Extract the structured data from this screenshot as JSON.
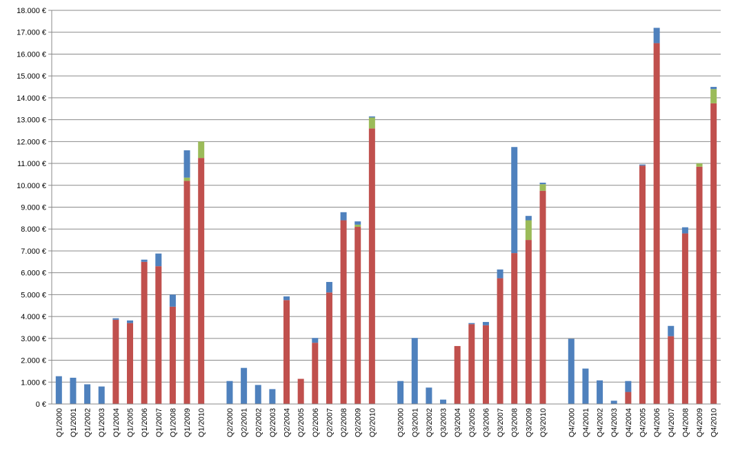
{
  "chart_data": {
    "type": "stacked-bar",
    "categories": [
      "Q1/2000",
      "Q1/2001",
      "Q1/2002",
      "Q1/2003",
      "Q1/2004",
      "Q1/2005",
      "Q1/2006",
      "Q1/2007",
      "Q1/2008",
      "Q1/2009",
      "Q1/2010",
      null,
      "Q2/2000",
      "Q2/2001",
      "Q2/2002",
      "Q2/2003",
      "Q2/2004",
      "Q2/2005",
      "Q2/2006",
      "Q2/2007",
      "Q2/2008",
      "Q2/2009",
      "Q2/2010",
      null,
      "Q3/2000",
      "Q3/2001",
      "Q3/2002",
      "Q3/2003",
      "Q3/2004",
      "Q3/2005",
      "Q3/2006",
      "Q3/2007",
      "Q3/2008",
      "Q3/2009",
      "Q3/2010",
      null,
      "Q4/2000",
      "Q4/2001",
      "Q4/2002",
      "Q4/2003",
      "Q4/2004",
      "Q4/2005",
      "Q4/2006",
      "Q4/2007",
      "Q4/2008",
      "Q4/2009",
      "Q4/2010"
    ],
    "series": [
      {
        "color": "#c0504d",
        "values": [
          0,
          0,
          0,
          0,
          3850,
          3700,
          6500,
          6300,
          4450,
          10200,
          11250,
          null,
          0,
          0,
          0,
          0,
          4750,
          1150,
          2800,
          5100,
          8400,
          8100,
          12600,
          null,
          0,
          0,
          0,
          0,
          2650,
          3650,
          3600,
          5750,
          6900,
          7500,
          9750,
          null,
          0,
          0,
          0,
          0,
          550,
          10900,
          16500,
          3100,
          7800,
          10850,
          13750
        ]
      },
      {
        "color": "#9bbb59",
        "values": [
          0,
          0,
          0,
          0,
          0,
          0,
          0,
          0,
          0,
          150,
          750,
          null,
          0,
          0,
          0,
          0,
          0,
          0,
          0,
          0,
          0,
          100,
          500,
          null,
          0,
          0,
          0,
          0,
          0,
          0,
          0,
          0,
          0,
          900,
          300,
          null,
          0,
          0,
          0,
          0,
          0,
          0,
          0,
          0,
          0,
          150,
          650
        ]
      },
      {
        "color": "#4f81bd",
        "values": [
          1270,
          1200,
          900,
          800,
          70,
          120,
          100,
          580,
          550,
          1250,
          0,
          null,
          1050,
          1650,
          870,
          680,
          170,
          0,
          220,
          480,
          370,
          150,
          50,
          null,
          1050,
          3020,
          750,
          200,
          0,
          50,
          150,
          400,
          4850,
          200,
          70,
          null,
          2980,
          1620,
          1080,
          150,
          500,
          50,
          700,
          470,
          280,
          0,
          100
        ]
      }
    ],
    "ylim": [
      0,
      18000
    ],
    "yticks": [
      {
        "value": 0,
        "label": "0 €"
      },
      {
        "value": 1000,
        "label": "1.000 €"
      },
      {
        "value": 2000,
        "label": "2.000 €"
      },
      {
        "value": 3000,
        "label": "3.000 €"
      },
      {
        "value": 4000,
        "label": "4.000 €"
      },
      {
        "value": 5000,
        "label": "5.000 €"
      },
      {
        "value": 6000,
        "label": "6.000 €"
      },
      {
        "value": 7000,
        "label": "7.000 €"
      },
      {
        "value": 8000,
        "label": "8.000 €"
      },
      {
        "value": 9000,
        "label": "9.000 €"
      },
      {
        "value": 10000,
        "label": "10.000 €"
      },
      {
        "value": 11000,
        "label": "11.000 €"
      },
      {
        "value": 12000,
        "label": "12.000 €"
      },
      {
        "value": 13000,
        "label": "13.000 €"
      },
      {
        "value": 14000,
        "label": "14.000 €"
      },
      {
        "value": 15000,
        "label": "15.000 €"
      },
      {
        "value": 16000,
        "label": "16.000 €"
      },
      {
        "value": 17000,
        "label": "17.000 €"
      },
      {
        "value": 18000,
        "label": "18.000 €"
      }
    ],
    "grid": true
  }
}
